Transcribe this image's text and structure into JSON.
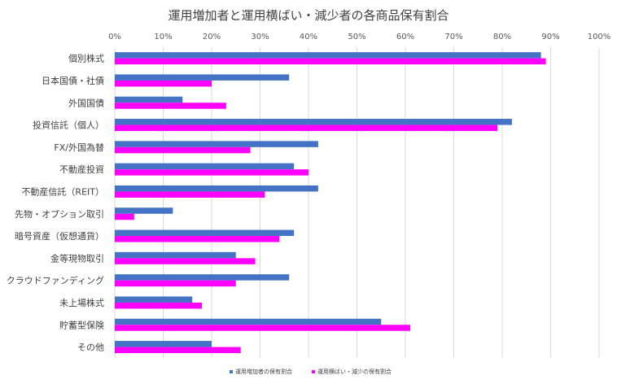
{
  "chart_data": {
    "type": "bar",
    "orientation": "horizontal",
    "title": "運用増加者と運用横ばい・減少者の各商品保有割合",
    "xlim": [
      0,
      1
    ],
    "x_ticks": [
      "0%",
      "10%",
      "20%",
      "30%",
      "40%",
      "50%",
      "60%",
      "70%",
      "80%",
      "90%",
      "100%"
    ],
    "grid": true,
    "legend_position": "bottom",
    "categories": [
      "個別株式",
      "日本国債・社債",
      "外国国債",
      "投資信託（個人）",
      "FX/外国為替",
      "不動産投資",
      "不動産信託（REIT）",
      "先物・オプション取引",
      "暗号資産（仮想通貨）",
      "金等現物取引",
      "クラウドファンディング",
      "未上場株式",
      "貯蓄型保険",
      "その他"
    ],
    "series": [
      {
        "name": "運用増加者の保有割合",
        "color": "#4472c4",
        "values": [
          0.88,
          0.36,
          0.14,
          0.82,
          0.42,
          0.37,
          0.42,
          0.12,
          0.37,
          0.25,
          0.36,
          0.16,
          0.55,
          0.2
        ]
      },
      {
        "name": "運用横ばい・減少の保有割合",
        "color": "#ff00ff",
        "values": [
          0.89,
          0.2,
          0.23,
          0.79,
          0.28,
          0.4,
          0.31,
          0.04,
          0.34,
          0.29,
          0.25,
          0.18,
          0.61,
          0.26
        ]
      }
    ]
  }
}
